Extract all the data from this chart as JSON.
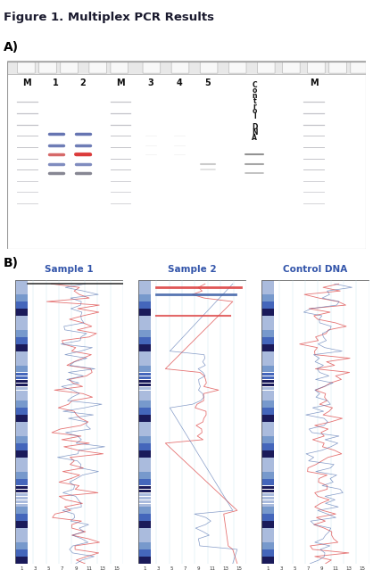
{
  "title": "Figure 1. Multiplex PCR Results",
  "title_bg": "#b5bf8a",
  "title_color": "#1a1a2e",
  "fig_bg": "#ffffff",
  "section_A_label": "A)",
  "section_B_label": "B)",
  "gel_bg": "#f0eeea",
  "sample_titles": [
    "Sample 1",
    "Sample 2",
    "Control DNA"
  ],
  "band_color_dark": "#3a3a5a",
  "band_color_red": "#cc4444",
  "band_color_blue": "#4466aa"
}
